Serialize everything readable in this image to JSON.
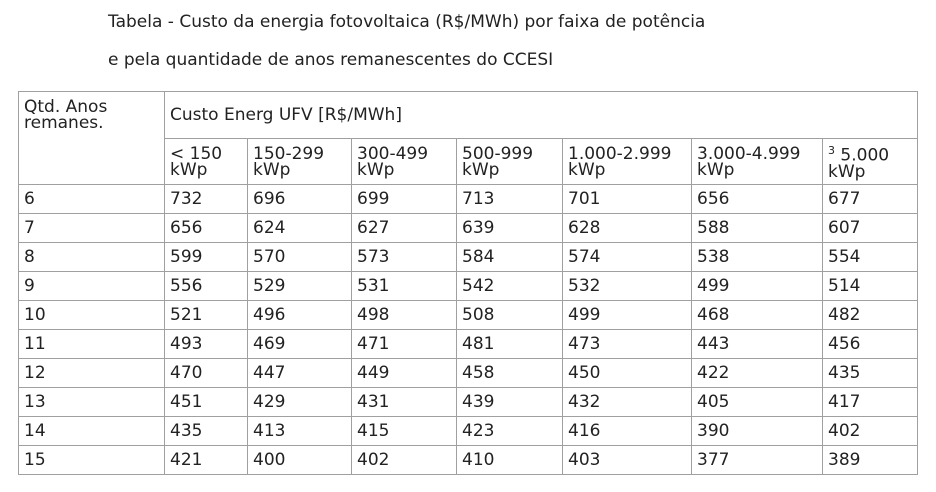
{
  "caption": {
    "line1": "Tabela - Custo da energia fotovoltaica (R$/MWh) por faixa de potência",
    "line2": "e pela quantidade de anos remanescentes do CCESI"
  },
  "table": {
    "corner_header": [
      "Qtd. Anos",
      "remanes."
    ],
    "group_header": "Custo Energ UFV [R$/MWh]",
    "columns": [
      {
        "range": "< 150",
        "unit": "kWp"
      },
      {
        "range": "150-299",
        "unit": "kWp"
      },
      {
        "range": "300-499",
        "unit": "kWp"
      },
      {
        "range": "500-999",
        "unit": "kWp"
      },
      {
        "range": "1.000-2.999",
        "unit": "kWp"
      },
      {
        "range": "3.000-4.999",
        "unit": "kWp"
      },
      {
        "sup": "3",
        "range": "5.000",
        "unit": "kWp"
      }
    ],
    "rows": [
      {
        "years": "6",
        "values": [
          "732",
          "696",
          "699",
          "713",
          "701",
          "656",
          "677"
        ]
      },
      {
        "years": "7",
        "values": [
          "656",
          "624",
          "627",
          "639",
          "628",
          "588",
          "607"
        ]
      },
      {
        "years": "8",
        "values": [
          "599",
          "570",
          "573",
          "584",
          "574",
          "538",
          "554"
        ]
      },
      {
        "years": "9",
        "values": [
          "556",
          "529",
          "531",
          "542",
          "532",
          "499",
          "514"
        ]
      },
      {
        "years": "10",
        "values": [
          "521",
          "496",
          "498",
          "508",
          "499",
          "468",
          "482"
        ]
      },
      {
        "years": "11",
        "values": [
          "493",
          "469",
          "471",
          "481",
          "473",
          "443",
          "456"
        ]
      },
      {
        "years": "12",
        "values": [
          "470",
          "447",
          "449",
          "458",
          "450",
          "422",
          "435"
        ]
      },
      {
        "years": "13",
        "values": [
          "451",
          "429",
          "431",
          "439",
          "432",
          "405",
          "417"
        ]
      },
      {
        "years": "14",
        "values": [
          "435",
          "413",
          "415",
          "423",
          "416",
          "390",
          "402"
        ]
      },
      {
        "years": "15",
        "values": [
          "421",
          "400",
          "402",
          "410",
          "403",
          "377",
          "389"
        ]
      }
    ]
  }
}
